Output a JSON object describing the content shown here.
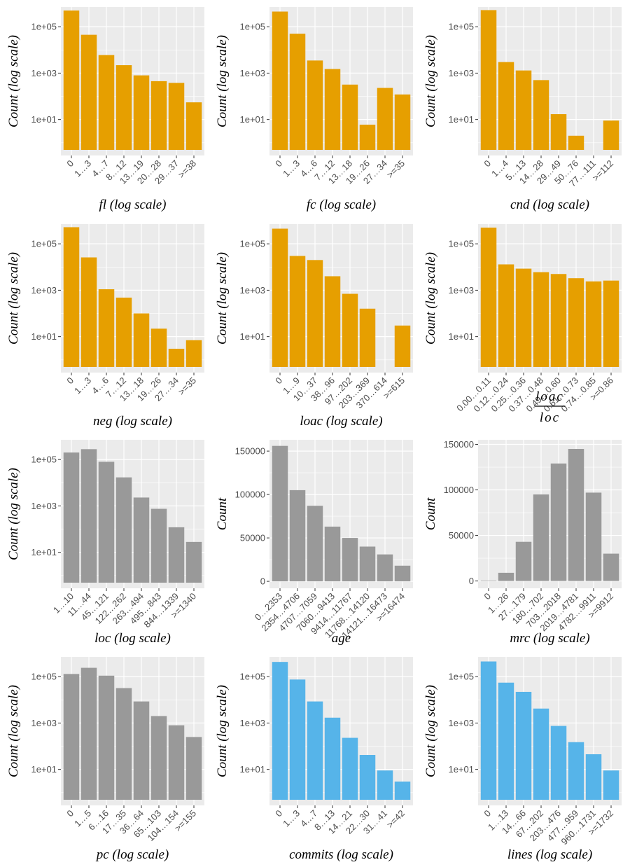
{
  "colors": {
    "orange": "#E69F00",
    "gray": "#999999",
    "blue": "#56B4E9",
    "panel_bg": "#EBEBEB",
    "grid": "#FFFFFF"
  },
  "chart_data": [
    {
      "type": "bar",
      "scale": "log",
      "color": "orange",
      "xlabel": "fl (log scale)",
      "ylabel": "Count (log scale)",
      "categories": [
        "0",
        "1…3",
        "4…7",
        "8…12",
        "13…19",
        "20…28",
        "29…37",
        ">=38"
      ],
      "values": [
        500000,
        45000,
        6000,
        2200,
        800,
        450,
        380,
        55
      ],
      "yticks": [
        "1e+01",
        "1e+03",
        "1e+05"
      ],
      "ytick_values": [
        10,
        1000,
        100000
      ]
    },
    {
      "type": "bar",
      "scale": "log",
      "color": "orange",
      "xlabel": "fc (log scale)",
      "ylabel": "Count (log scale)",
      "categories": [
        "0",
        "1…3",
        "4…6",
        "7…12",
        "13…18",
        "19…26",
        "27…34",
        ">=35"
      ],
      "values": [
        450000,
        50000,
        3500,
        1500,
        320,
        6,
        230,
        120
      ],
      "yticks": [
        "1e+01",
        "1e+03",
        "1e+05"
      ],
      "ytick_values": [
        10,
        1000,
        100000
      ]
    },
    {
      "type": "bar",
      "scale": "log",
      "color": "orange",
      "xlabel": "cnd (log scale)",
      "ylabel": "Count (log scale)",
      "categories": [
        "0",
        "1…4",
        "5…13",
        "14…28",
        "29…49",
        "50…76",
        "77…111",
        ">=112"
      ],
      "values": [
        520000,
        3000,
        1300,
        500,
        17,
        2,
        0,
        9
      ],
      "yticks": [
        "1e+01",
        "1e+03",
        "1e+05"
      ],
      "ytick_values": [
        10,
        1000,
        100000
      ]
    },
    {
      "type": "bar",
      "scale": "log",
      "color": "orange",
      "xlabel": "neg (log scale)",
      "ylabel": "Count (log scale)",
      "categories": [
        "0",
        "1…3",
        "4…6",
        "7…12",
        "13…18",
        "19…26",
        "27…34",
        ">=35"
      ],
      "values": [
        520000,
        26000,
        1100,
        480,
        100,
        22,
        3,
        7
      ],
      "yticks": [
        "1e+01",
        "1e+03",
        "1e+05"
      ],
      "ytick_values": [
        10,
        1000,
        100000
      ]
    },
    {
      "type": "bar",
      "scale": "log",
      "color": "orange",
      "xlabel": "loac (log scale)",
      "ylabel": "Count (log scale)",
      "categories": [
        "0",
        "1…9",
        "10…37",
        "38…96",
        "97…202",
        "203…369",
        "370…614",
        ">=615"
      ],
      "values": [
        450000,
        30000,
        20000,
        4000,
        700,
        160,
        0,
        30
      ],
      "yticks": [
        "1e+01",
        "1e+03",
        "1e+05"
      ],
      "ytick_values": [
        10,
        1000,
        100000
      ]
    },
    {
      "type": "bar",
      "scale": "log",
      "color": "orange",
      "xlabel_num": "loac",
      "xlabel_den": "loc",
      "ylabel": "Count (log scale)",
      "categories": [
        "0.00…0.11",
        "0.12…0.24",
        "0.25…0.36",
        "0.37…0.48",
        "0.49…0.60",
        "0.61…0.73",
        "0.74…0.85",
        ">=0.86"
      ],
      "values": [
        500000,
        13000,
        8500,
        6000,
        5000,
        3300,
        2400,
        2600
      ],
      "yticks": [
        "1e+01",
        "1e+03",
        "1e+05"
      ],
      "ytick_values": [
        10,
        1000,
        100000
      ]
    },
    {
      "type": "bar",
      "scale": "log",
      "color": "gray",
      "xlabel": "loc (log scale)",
      "ylabel": "Count (log scale)",
      "categories": [
        "1…10",
        "11…44",
        "45…121",
        "122…262",
        "263…494",
        "495…843",
        "844…1339",
        ">=1340"
      ],
      "values": [
        200000,
        280000,
        80000,
        17000,
        2300,
        750,
        120,
        28
      ],
      "yticks": [
        "1e+01",
        "1e+03",
        "1e+05"
      ],
      "ytick_values": [
        10,
        1000,
        100000
      ]
    },
    {
      "type": "bar",
      "scale": "linear",
      "color": "gray",
      "xlabel": "age",
      "ylabel": "Count",
      "categories": [
        "0…2353",
        "2354…4706",
        "4707…7059",
        "7060…9413",
        "9414…11767",
        "11768…14120",
        "14121…16473",
        ">=16474"
      ],
      "values": [
        156000,
        105000,
        87000,
        63000,
        50000,
        40000,
        31000,
        18000
      ],
      "yticks": [
        "0",
        "50000",
        "100000",
        "150000"
      ],
      "ytick_values": [
        0,
        50000,
        100000,
        150000
      ],
      "ylim": [
        -8000,
        163000
      ]
    },
    {
      "type": "bar",
      "scale": "linear",
      "color": "gray",
      "xlabel": "mrc (log scale)",
      "ylabel": "Count",
      "categories": [
        "0",
        "1…26",
        "27…179",
        "180…702",
        "703…2018",
        "2019…4781",
        "4782…9911",
        ">=9912"
      ],
      "values": [
        500,
        9000,
        43000,
        95000,
        129000,
        145000,
        97000,
        30000
      ],
      "yticks": [
        "0",
        "50000",
        "100000",
        "150000"
      ],
      "ytick_values": [
        0,
        50000,
        100000,
        150000
      ],
      "ylim": [
        -8000,
        155000
      ]
    },
    {
      "type": "bar",
      "scale": "log",
      "color": "gray",
      "xlabel": "pc (log scale)",
      "ylabel": "Count (log scale)",
      "categories": [
        "0",
        "1…5",
        "6…16",
        "17…35",
        "36…64",
        "65…103",
        "104…154",
        ">=155"
      ],
      "values": [
        130000,
        240000,
        110000,
        32000,
        8500,
        2000,
        800,
        250
      ],
      "yticks": [
        "1e+01",
        "1e+03",
        "1e+05"
      ],
      "ytick_values": [
        10,
        1000,
        100000
      ]
    },
    {
      "type": "bar",
      "scale": "log",
      "color": "blue",
      "xlabel": "commits (log scale)",
      "ylabel": "Count (log scale)",
      "categories": [
        "0",
        "1…3",
        "4…7",
        "8…13",
        "14…21",
        "22…30",
        "31…41",
        ">=42"
      ],
      "values": [
        430000,
        75000,
        8500,
        1700,
        230,
        42,
        9,
        3
      ],
      "yticks": [
        "1e+01",
        "1e+03",
        "1e+05"
      ],
      "ytick_values": [
        10,
        1000,
        100000
      ]
    },
    {
      "type": "bar",
      "scale": "log",
      "color": "blue",
      "xlabel": "lines (log scale)",
      "ylabel": "Count (log scale)",
      "categories": [
        "0",
        "1…13",
        "14…66",
        "67…202",
        "203…476",
        "477…959",
        "960…1731",
        ">=1732"
      ],
      "values": [
        450000,
        55000,
        22000,
        4200,
        750,
        150,
        45,
        9
      ],
      "yticks": [
        "1e+01",
        "1e+03",
        "1e+05"
      ],
      "ytick_values": [
        10,
        1000,
        100000
      ]
    }
  ]
}
